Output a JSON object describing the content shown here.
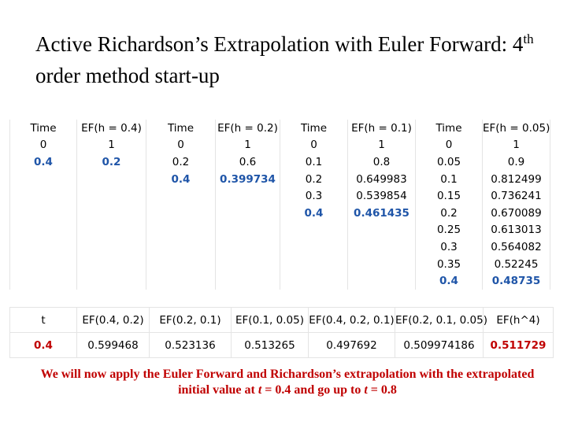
{
  "title": {
    "before": "Active Richardson’s Extrapolation with Euler Forward: 4",
    "sup": "th",
    "after": " order method start-up"
  },
  "table1": {
    "columns": [
      {
        "header": "Time",
        "values": [
          "0",
          "0.4"
        ]
      },
      {
        "header": "EF(h = 0.4)",
        "values": [
          "1",
          "0.2"
        ]
      },
      {
        "header": "Time",
        "values": [
          "0",
          "0.2",
          "0.4"
        ]
      },
      {
        "header": "EF(h = 0.2)",
        "values": [
          "1",
          "0.6",
          "0.399734"
        ]
      },
      {
        "header": "Time",
        "values": [
          "0",
          "0.1",
          "0.2",
          "0.3",
          "0.4"
        ]
      },
      {
        "header": "EF(h = 0.1)",
        "values": [
          "1",
          "0.8",
          "0.649983",
          "0.539854",
          "0.461435"
        ]
      },
      {
        "header": "Time",
        "values": [
          "0",
          "0.05",
          "0.1",
          "0.15",
          "0.2",
          "0.25",
          "0.3",
          "0.35",
          "0.4"
        ]
      },
      {
        "header": "EF(h = 0.05)",
        "values": [
          "1",
          "0.9",
          "0.812499",
          "0.736241",
          "0.670089",
          "0.613013",
          "0.564082",
          "0.52245",
          "0.48735"
        ]
      }
    ]
  },
  "table2": {
    "headers": [
      "t",
      "EF(0.4, 0.2)",
      "EF(0.2, 0.1)",
      "EF(0.1, 0.05)",
      "EF(0.4, 0.2, 0.1)",
      "EF(0.2, 0.1, 0.05)",
      "EF(h^4)"
    ],
    "values": [
      "0.4",
      "0.599468",
      "0.523136",
      "0.513265",
      "0.497692",
      "0.509974186",
      "0.511729"
    ]
  },
  "footer": [
    {
      "text": "We will now apply the Euler Forward and Richardson’s extrapolation with the extrapolated initial value at ",
      "italic": false
    },
    {
      "text": "t",
      "italic": true
    },
    {
      "text": " = 0.4 and go up to ",
      "italic": false
    },
    {
      "text": "t",
      "italic": true
    },
    {
      "text": " = 0.8",
      "italic": false
    }
  ]
}
